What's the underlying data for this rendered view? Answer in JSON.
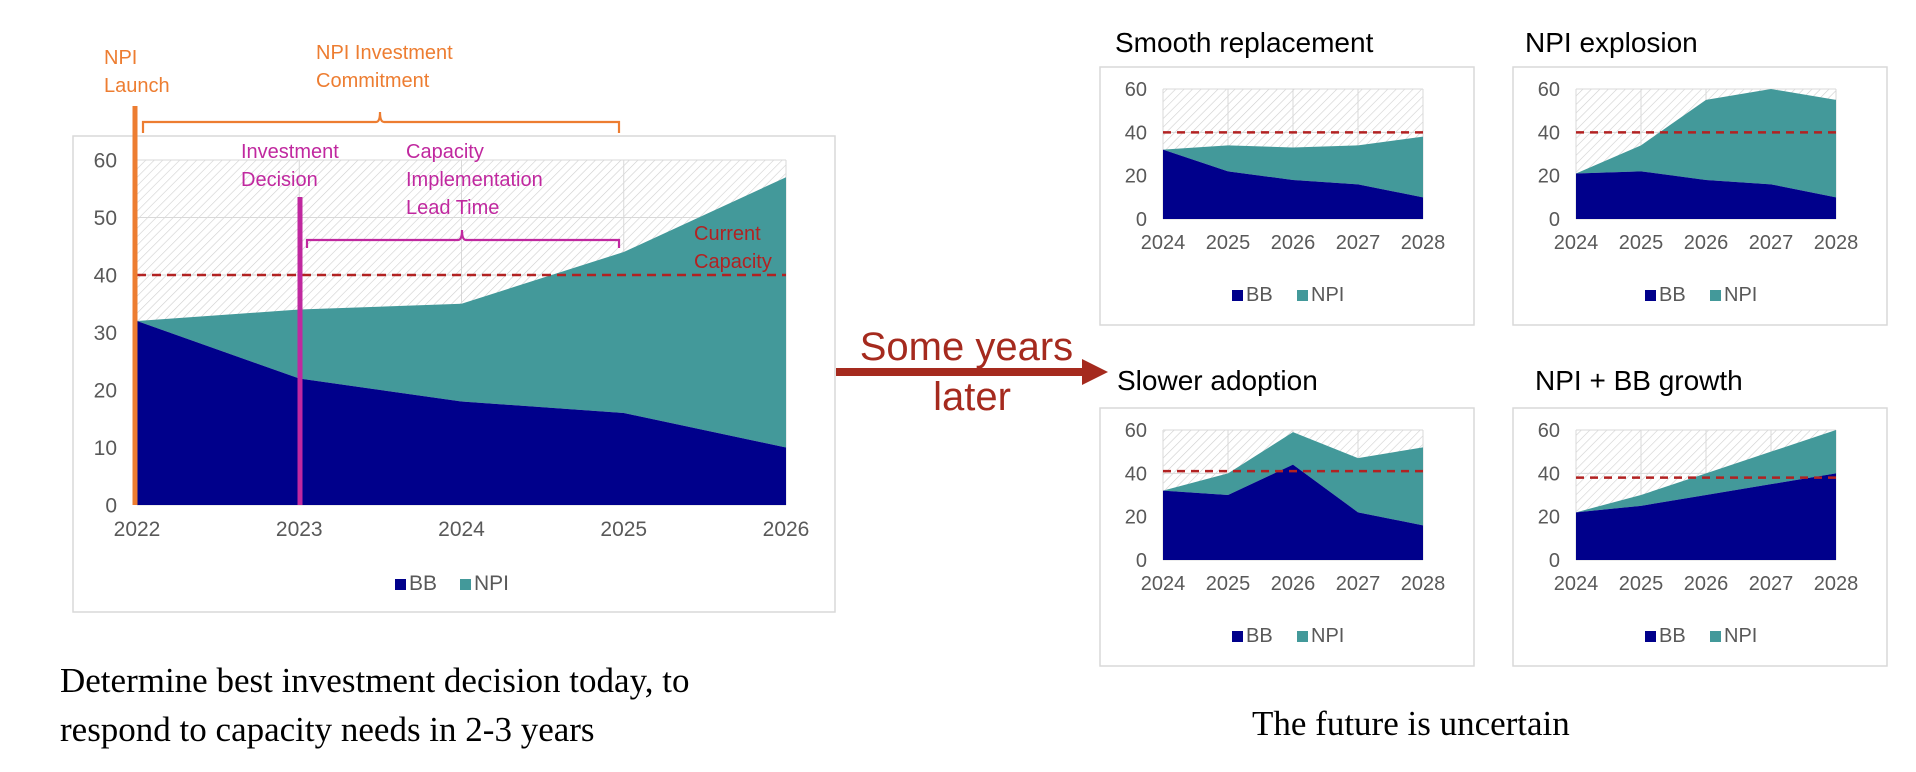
{
  "colors": {
    "bb": "#00008B",
    "npi": "#43999A",
    "capacity_line": "#B22222",
    "npi_orange": "#ED7D31",
    "investment_magenta": "#C0289F",
    "arrow_red": "#A52A1E",
    "axis_text": "#595959",
    "frame": "#D9D9D9",
    "grid": "#D9D9D9"
  },
  "main_annotations": {
    "npi_launch": [
      "NPI",
      "Launch"
    ],
    "npi_commitment": [
      "NPI Investment",
      "Commitment"
    ],
    "investment_decision": [
      "Investment",
      "Decision"
    ],
    "lead_time": [
      "Capacity",
      "Implementation",
      "Lead Time"
    ],
    "current_capacity": [
      "Current",
      "Capacity"
    ]
  },
  "middle": {
    "arrow_text": [
      "Some years",
      "later"
    ]
  },
  "captions": {
    "left": [
      "Determine best investment decision today, to",
      "respond to capacity needs in 2-3 years"
    ],
    "right": "The future is uncertain"
  },
  "chart_data": [
    {
      "type": "area",
      "stacked": true,
      "title": "",
      "x": [
        "2022",
        "2023",
        "2024",
        "2025",
        "2026"
      ],
      "series": [
        {
          "name": "BB",
          "values": [
            32,
            22,
            18,
            16,
            10
          ]
        },
        {
          "name": "NPI",
          "values": [
            0,
            12,
            17,
            28,
            47
          ]
        }
      ],
      "ylim": [
        0,
        60
      ],
      "yticks": [
        0,
        10,
        20,
        30,
        40,
        50,
        60
      ],
      "current_capacity": 40,
      "legend": [
        "BB",
        "NPI"
      ],
      "legend_placement": "bottom",
      "grid": true
    },
    {
      "type": "area",
      "stacked": true,
      "title": "Smooth  replacement",
      "x": [
        "2024",
        "2025",
        "2026",
        "2027",
        "2028"
      ],
      "series": [
        {
          "name": "BB",
          "values": [
            32,
            22,
            18,
            16,
            10
          ]
        },
        {
          "name": "NPI",
          "values": [
            0,
            12,
            15,
            18,
            28
          ]
        }
      ],
      "ylim": [
        0,
        60
      ],
      "yticks": [
        0,
        20,
        40,
        60
      ],
      "current_capacity": 40,
      "legend": [
        "BB",
        "NPI"
      ],
      "legend_placement": "bottom",
      "grid": true
    },
    {
      "type": "area",
      "stacked": true,
      "title": "NPI  explosion",
      "x": [
        "2024",
        "2025",
        "2026",
        "2027",
        "2028"
      ],
      "series": [
        {
          "name": "BB",
          "values": [
            21,
            22,
            18,
            16,
            10
          ]
        },
        {
          "name": "NPI",
          "values": [
            0,
            12,
            37,
            44,
            45
          ]
        }
      ],
      "ylim": [
        0,
        60
      ],
      "yticks": [
        0,
        20,
        40,
        60
      ],
      "current_capacity": 40,
      "legend": [
        "BB",
        "NPI"
      ],
      "legend_placement": "bottom",
      "grid": true
    },
    {
      "type": "area",
      "stacked": true,
      "title": "Slower  adoption",
      "x": [
        "2024",
        "2025",
        "2026",
        "2027",
        "2028"
      ],
      "series": [
        {
          "name": "BB",
          "values": [
            32,
            30,
            44,
            22,
            16
          ]
        },
        {
          "name": "NPI",
          "values": [
            0,
            10,
            15,
            25,
            36
          ]
        }
      ],
      "ylim": [
        0,
        60
      ],
      "yticks": [
        0,
        20,
        40,
        60
      ],
      "current_capacity": 41,
      "legend": [
        "BB",
        "NPI"
      ],
      "legend_placement": "bottom",
      "grid": true
    },
    {
      "type": "area",
      "stacked": true,
      "title": "NPI + BB growth",
      "x": [
        "2024",
        "2025",
        "2026",
        "2027",
        "2028"
      ],
      "series": [
        {
          "name": "BB",
          "values": [
            22,
            25,
            30,
            35,
            40
          ]
        },
        {
          "name": "NPI",
          "values": [
            0,
            5,
            10,
            15,
            20
          ]
        }
      ],
      "ylim": [
        0,
        60
      ],
      "yticks": [
        0,
        20,
        40,
        60
      ],
      "current_capacity": 38,
      "legend": [
        "BB",
        "NPI"
      ],
      "legend_placement": "bottom",
      "grid": true
    }
  ]
}
